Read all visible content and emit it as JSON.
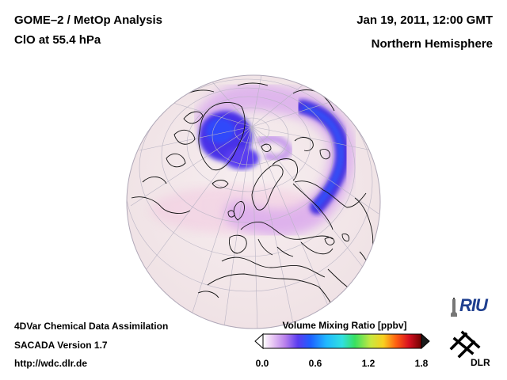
{
  "header": {
    "title": "GOME–2 / MetOp Analysis",
    "species": "ClO at 55.4 hPa",
    "datetime": "Jan 19, 2011, 12:00 GMT",
    "region": "Northern Hemisphere"
  },
  "footer": {
    "line1": "4DVar Chemical Data Assimilation",
    "line2": "SACADA Version 1.7",
    "url": "http://wdc.dlr.de"
  },
  "legend": {
    "title": "Volume Mixing Ratio [ppbv]",
    "ticks": [
      "0.0",
      "0.6",
      "1.2",
      "1.8"
    ],
    "range": [
      0.0,
      1.8
    ],
    "colors": [
      "#ffffff",
      "#d9a8f0",
      "#4a32e8",
      "#1e7cff",
      "#28d8ff",
      "#38e060",
      "#f0e030",
      "#ff5010",
      "#c00010",
      "#600000"
    ]
  },
  "logos": {
    "riu": "RIU",
    "dlr": "DLR"
  }
}
